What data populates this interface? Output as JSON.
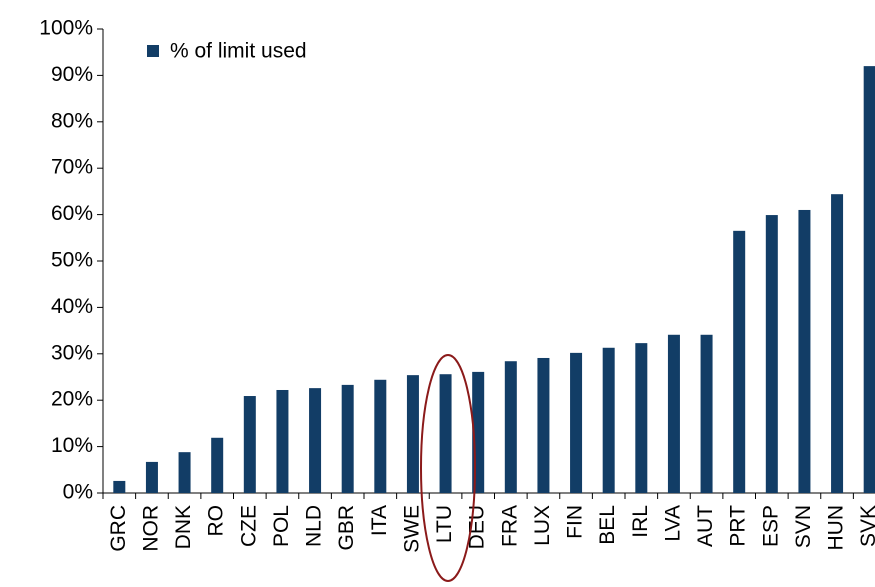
{
  "chart_data": {
    "type": "bar",
    "categories": [
      "GRC",
      "NOR",
      "DNK",
      "RO",
      "CZE",
      "POL",
      "NLD",
      "GBR",
      "ITA",
      "SWE",
      "LTU",
      "DEU",
      "FRA",
      "LUX",
      "FIN",
      "BEL",
      "IRL",
      "LVA",
      "AUT",
      "PRT",
      "ESP",
      "SVN",
      "HUN",
      "SVK"
    ],
    "series": [
      {
        "name": "% of limit used",
        "color": "#123d66",
        "values": [
          2.6,
          6.7,
          8.8,
          11.9,
          20.9,
          22.2,
          22.6,
          23.3,
          24.4,
          25.4,
          25.6,
          26.1,
          28.4,
          29.1,
          30.2,
          31.3,
          32.3,
          34.1,
          34.1,
          56.5,
          59.9,
          61.0,
          64.4,
          92.0
        ]
      }
    ],
    "ylim": [
      0,
      100
    ],
    "yticks": [
      {
        "value": 0,
        "label": "0%"
      },
      {
        "value": 10,
        "label": "10%"
      },
      {
        "value": 20,
        "label": "20%"
      },
      {
        "value": 30,
        "label": "30%"
      },
      {
        "value": 40,
        "label": "40%"
      },
      {
        "value": 50,
        "label": "50%"
      },
      {
        "value": 60,
        "label": "60%"
      },
      {
        "value": 70,
        "label": "70%"
      },
      {
        "value": 80,
        "label": "80%"
      },
      {
        "value": 90,
        "label": "90%"
      },
      {
        "value": 100,
        "label": "100%"
      }
    ],
    "grid": false,
    "legend": "upper left"
  }
}
